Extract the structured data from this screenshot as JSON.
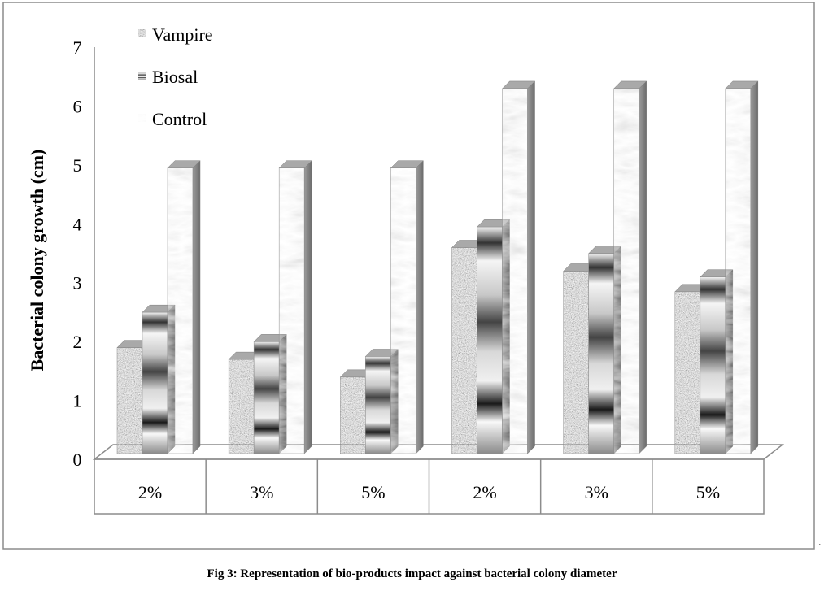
{
  "caption": "Fig 3: Representation of bio-products impact against bacterial colony diameter",
  "trailing_mark": ".",
  "chart_data": {
    "type": "bar",
    "title": "",
    "xlabel": "",
    "ylabel": "Bacterial colony growth (cm)",
    "ylim": [
      0,
      7
    ],
    "yticks": [
      0,
      1,
      2,
      3,
      4,
      5,
      6,
      7
    ],
    "categories": [
      "2%",
      "3%",
      "5%",
      "2%",
      "3%",
      "5%"
    ],
    "series": [
      {
        "name": "Vampire",
        "values": [
          1.8,
          1.6,
          1.3,
          3.5,
          3.1,
          2.75
        ],
        "color": "#9a9a9a",
        "pattern": "speckled"
      },
      {
        "name": "Biosal",
        "values": [
          2.4,
          1.9,
          1.65,
          3.85,
          3.4,
          3.0
        ],
        "color": "#777777",
        "pattern": "banded"
      },
      {
        "name": "Control",
        "values": [
          4.85,
          4.85,
          4.85,
          6.2,
          6.2,
          6.2
        ],
        "color": "#e6e6e6",
        "pattern": "marble"
      }
    ],
    "grid": false,
    "legend": "top-left",
    "style": "3d-columns"
  }
}
